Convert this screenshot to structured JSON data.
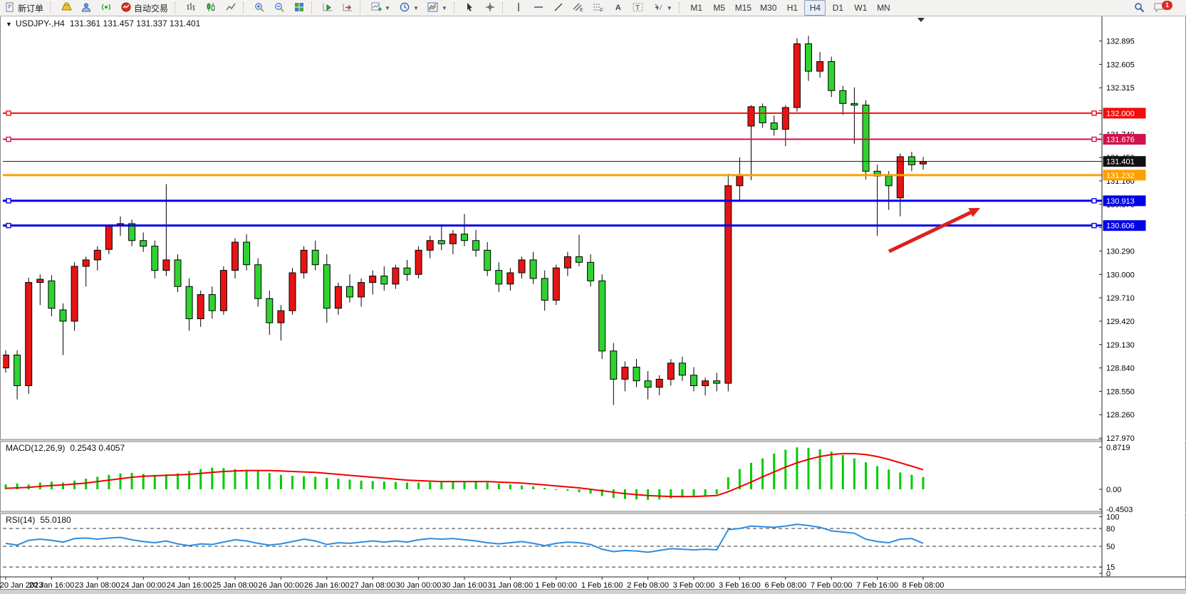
{
  "toolbar": {
    "new_order": "新订单",
    "autotrade": "自动交易",
    "timeframes": [
      "M1",
      "M5",
      "M15",
      "M30",
      "H1",
      "H4",
      "D1",
      "W1",
      "MN"
    ],
    "active_timeframe": "H4",
    "notification_count": "1",
    "drawing_tool_letters": {
      "channel": "E",
      "fibonacci": "F",
      "text": "A",
      "label": "T"
    },
    "icons": [
      "new-order-icon",
      "gold-icon",
      "profile-icon",
      "signal-icon",
      "autotrade-icon",
      "bars-chart-icon",
      "candles-chart-icon",
      "line-chart-icon",
      "zoom-in-icon",
      "zoom-out-icon",
      "tile-windows-icon",
      "auto-scroll-icon",
      "chart-shift-icon",
      "add-indicator-icon",
      "period-icon",
      "template-icon",
      "cursor-icon",
      "crosshair-icon",
      "vertical-line-icon",
      "horizontal-line-icon",
      "trendline-icon",
      "channel-icon",
      "fibonacci-icon",
      "text-icon",
      "text-label-icon",
      "arrows-icon",
      "search-icon",
      "chat-icon"
    ]
  },
  "chart_data": [
    {
      "type": "candlestick",
      "title": "USDJPY-,H4",
      "ohlc_text": "131.361 131.457 131.337 131.401",
      "open": "131.361",
      "high": "131.457",
      "low": "131.337",
      "close": "131.401",
      "x_start": "20 Jan 2023 00:00",
      "interval": "H4",
      "x_labels": [
        "20 Jan 2023",
        "20 Jan 16:00",
        "23 Jan 08:00",
        "24 Jan 00:00",
        "24 Jan 16:00",
        "25 Jan 08:00",
        "26 Jan 00:00",
        "26 Jan 16:00",
        "27 Jan 08:00",
        "30 Jan 00:00",
        "30 Jan 16:00",
        "31 Jan 08:00",
        "1 Feb 00:00",
        "1 Feb 16:00",
        "2 Feb 08:00",
        "3 Feb 00:00",
        "3 Feb 16:00",
        "6 Feb 08:00",
        "7 Feb 00:00",
        "7 Feb 16:00",
        "8 Feb 08:00"
      ],
      "y_ticks": [
        "132.895",
        "132.605",
        "132.315",
        "132.030",
        "131.740",
        "131.450",
        "131.160",
        "130.870",
        "130.580",
        "130.290",
        "130.000",
        "129.710",
        "129.420",
        "129.130",
        "128.840",
        "128.550",
        "128.260",
        "127.970"
      ],
      "up_color": "#e81414",
      "down_color": "#2fd330",
      "wick_color": "#000000",
      "horizontal_lines": [
        {
          "price": 132.0,
          "label": "132.000",
          "color": "#f20c0c",
          "width": 2,
          "handles": true
        },
        {
          "price": 131.676,
          "label": "131.676",
          "color": "#d2114c",
          "width": 2,
          "handles": true
        },
        {
          "price": 131.401,
          "label": "131.401",
          "color": "#111111",
          "width": 1,
          "handles": false
        },
        {
          "price": 131.232,
          "label": "131.232",
          "color": "#ffa000",
          "width": 3,
          "handles": false
        },
        {
          "price": 130.913,
          "label": "130.913",
          "color": "#0202e8",
          "width": 3,
          "handles": true
        },
        {
          "price": 130.606,
          "label": "130.606",
          "color": "#0202e8",
          "width": 3,
          "handles": true
        }
      ],
      "annotation_arrow": {
        "from": [
          1248,
          353
        ],
        "to": [
          1376,
          292
        ],
        "color": "#dd2020"
      },
      "bars": [
        [
          128.84,
          129.06,
          128.78,
          129.0
        ],
        [
          129.0,
          129.06,
          128.45,
          128.62
        ],
        [
          128.62,
          129.96,
          128.52,
          129.9
        ],
        [
          129.9,
          130.0,
          129.62,
          129.94
        ],
        [
          129.92,
          129.99,
          129.48,
          129.58
        ],
        [
          129.56,
          129.64,
          129.0,
          129.42
        ],
        [
          129.42,
          130.15,
          129.3,
          130.1
        ],
        [
          130.1,
          130.22,
          129.85,
          130.18
        ],
        [
          130.18,
          130.35,
          130.05,
          130.3
        ],
        [
          130.31,
          130.62,
          130.25,
          130.6
        ],
        [
          130.6,
          130.72,
          130.48,
          130.63
        ],
        [
          130.63,
          130.68,
          130.35,
          130.42
        ],
        [
          130.42,
          130.52,
          130.28,
          130.35
        ],
        [
          130.35,
          130.42,
          129.95,
          130.05
        ],
        [
          130.05,
          131.12,
          129.98,
          130.18
        ],
        [
          130.18,
          130.25,
          129.78,
          129.85
        ],
        [
          129.85,
          129.95,
          129.3,
          129.45
        ],
        [
          129.45,
          129.8,
          129.35,
          129.75
        ],
        [
          129.75,
          129.85,
          129.45,
          129.55
        ],
        [
          129.55,
          130.1,
          129.5,
          130.05
        ],
        [
          130.05,
          130.45,
          129.95,
          130.4
        ],
        [
          130.4,
          130.5,
          130.05,
          130.12
        ],
        [
          130.12,
          130.2,
          129.6,
          129.7
        ],
        [
          129.7,
          129.8,
          129.25,
          129.4
        ],
        [
          129.4,
          129.62,
          129.18,
          129.55
        ],
        [
          129.55,
          130.08,
          129.5,
          130.02
        ],
        [
          130.02,
          130.35,
          129.95,
          130.3
        ],
        [
          130.3,
          130.42,
          130.05,
          130.12
        ],
        [
          130.12,
          130.25,
          129.4,
          129.58
        ],
        [
          129.58,
          129.9,
          129.5,
          129.85
        ],
        [
          129.85,
          130.0,
          129.65,
          129.72
        ],
        [
          129.72,
          129.95,
          129.6,
          129.9
        ],
        [
          129.9,
          130.05,
          129.75,
          129.98
        ],
        [
          129.98,
          130.1,
          129.8,
          129.88
        ],
        [
          129.88,
          130.12,
          129.82,
          130.08
        ],
        [
          130.08,
          130.18,
          129.92,
          130.0
        ],
        [
          130.0,
          130.35,
          129.95,
          130.3
        ],
        [
          130.3,
          130.48,
          130.2,
          130.42
        ],
        [
          130.42,
          130.62,
          130.3,
          130.38
        ],
        [
          130.38,
          130.55,
          130.25,
          130.5
        ],
        [
          130.5,
          130.75,
          130.35,
          130.42
        ],
        [
          130.42,
          130.55,
          130.22,
          130.3
        ],
        [
          130.3,
          130.4,
          129.98,
          130.05
        ],
        [
          130.05,
          130.15,
          129.78,
          129.88
        ],
        [
          129.88,
          130.08,
          129.8,
          130.02
        ],
        [
          130.02,
          130.22,
          129.95,
          130.18
        ],
        [
          130.18,
          130.28,
          129.88,
          129.95
        ],
        [
          129.95,
          130.05,
          129.55,
          129.68
        ],
        [
          129.68,
          130.12,
          129.62,
          130.08
        ],
        [
          130.08,
          130.28,
          129.98,
          130.22
        ],
        [
          130.22,
          130.49,
          130.1,
          130.15
        ],
        [
          130.15,
          130.25,
          129.85,
          129.92
        ],
        [
          129.92,
          130.0,
          128.95,
          129.05
        ],
        [
          129.05,
          129.15,
          128.38,
          128.7
        ],
        [
          128.7,
          128.92,
          128.55,
          128.85
        ],
        [
          128.85,
          128.95,
          128.6,
          128.68
        ],
        [
          128.68,
          128.8,
          128.45,
          128.6
        ],
        [
          128.6,
          128.75,
          128.5,
          128.7
        ],
        [
          128.7,
          128.95,
          128.62,
          128.9
        ],
        [
          128.9,
          128.98,
          128.68,
          128.75
        ],
        [
          128.75,
          128.85,
          128.55,
          128.62
        ],
        [
          128.62,
          128.72,
          128.5,
          128.68
        ],
        [
          128.68,
          128.78,
          128.55,
          128.65
        ],
        [
          128.65,
          131.25,
          128.55,
          131.1
        ],
        [
          131.1,
          131.45,
          130.9,
          131.22
        ],
        [
          131.84,
          132.1,
          131.17,
          132.08
        ],
        [
          132.08,
          132.12,
          131.82,
          131.88
        ],
        [
          131.88,
          131.97,
          131.72,
          131.8
        ],
        [
          131.8,
          132.1,
          131.59,
          132.07
        ],
        [
          132.07,
          132.93,
          132.02,
          132.86
        ],
        [
          132.86,
          132.96,
          132.4,
          132.52
        ],
        [
          132.52,
          132.76,
          132.44,
          132.64
        ],
        [
          132.64,
          132.7,
          132.2,
          132.28
        ],
        [
          132.28,
          132.34,
          131.98,
          132.12
        ],
        [
          132.12,
          132.32,
          131.62,
          132.1
        ],
        [
          132.1,
          132.16,
          131.18,
          131.28
        ],
        [
          131.28,
          131.36,
          130.48,
          131.22
        ],
        [
          131.22,
          131.28,
          130.8,
          131.1
        ],
        [
          130.95,
          131.5,
          130.72,
          131.46
        ],
        [
          131.46,
          131.52,
          131.28,
          131.36
        ],
        [
          131.37,
          131.457,
          131.3,
          131.401
        ]
      ]
    },
    {
      "type": "bar",
      "name": "MACD(12,26,9)",
      "values_text": "0.2543 0.4057",
      "main_value": "0.2543",
      "signal_value": "0.4057",
      "y_ticks": [
        "0.8719",
        "0.00",
        "-0.4503"
      ],
      "hist_color": "#00cc00",
      "signal_color": "#f00000",
      "values": [
        0.1,
        0.12,
        0.1,
        0.14,
        0.16,
        0.14,
        0.18,
        0.22,
        0.26,
        0.3,
        0.33,
        0.34,
        0.32,
        0.3,
        0.31,
        0.33,
        0.38,
        0.42,
        0.45,
        0.44,
        0.42,
        0.4,
        0.38,
        0.34,
        0.3,
        0.28,
        0.27,
        0.26,
        0.24,
        0.22,
        0.2,
        0.18,
        0.17,
        0.16,
        0.15,
        0.14,
        0.14,
        0.15,
        0.16,
        0.17,
        0.17,
        0.16,
        0.14,
        0.12,
        0.1,
        0.08,
        0.06,
        0.03,
        0.0,
        -0.03,
        -0.06,
        -0.09,
        -0.14,
        -0.18,
        -0.2,
        -0.21,
        -0.22,
        -0.21,
        -0.19,
        -0.17,
        -0.15,
        -0.13,
        -0.1,
        0.25,
        0.42,
        0.55,
        0.64,
        0.74,
        0.82,
        0.87,
        0.86,
        0.83,
        0.78,
        0.71,
        0.64,
        0.56,
        0.48,
        0.41,
        0.35,
        0.3,
        0.2543
      ],
      "signal": [
        0.02,
        0.03,
        0.04,
        0.06,
        0.08,
        0.09,
        0.11,
        0.13,
        0.16,
        0.19,
        0.22,
        0.25,
        0.27,
        0.28,
        0.29,
        0.3,
        0.31,
        0.33,
        0.35,
        0.37,
        0.38,
        0.39,
        0.39,
        0.39,
        0.38,
        0.37,
        0.36,
        0.35,
        0.33,
        0.31,
        0.29,
        0.27,
        0.25,
        0.23,
        0.21,
        0.19,
        0.18,
        0.17,
        0.16,
        0.16,
        0.16,
        0.16,
        0.16,
        0.15,
        0.14,
        0.13,
        0.11,
        0.09,
        0.07,
        0.05,
        0.03,
        0.0,
        -0.03,
        -0.06,
        -0.09,
        -0.11,
        -0.13,
        -0.14,
        -0.15,
        -0.15,
        -0.15,
        -0.14,
        -0.13,
        -0.05,
        0.05,
        0.15,
        0.26,
        0.36,
        0.46,
        0.55,
        0.62,
        0.68,
        0.72,
        0.74,
        0.74,
        0.72,
        0.68,
        0.62,
        0.55,
        0.48,
        0.4057
      ]
    },
    {
      "type": "line",
      "name": "RSI(14)",
      "value_text": "55.0180",
      "y_ticks": [
        "100",
        "80",
        "50",
        "15",
        "0"
      ],
      "levels": [
        80,
        50,
        15
      ],
      "line_color": "#2e8ce0",
      "values": [
        55,
        52,
        60,
        62,
        60,
        57,
        63,
        64,
        62,
        64,
        65,
        61,
        58,
        56,
        59,
        54,
        51,
        54,
        53,
        57,
        61,
        59,
        55,
        52,
        54,
        58,
        62,
        59,
        53,
        56,
        55,
        57,
        59,
        57,
        59,
        57,
        61,
        63,
        62,
        63,
        61,
        59,
        56,
        54,
        56,
        58,
        55,
        51,
        55,
        57,
        56,
        53,
        45,
        41,
        43,
        42,
        40,
        43,
        46,
        45,
        44,
        45,
        44,
        78,
        80,
        84,
        83,
        82,
        84,
        87,
        85,
        82,
        76,
        74,
        72,
        62,
        58,
        56,
        62,
        63,
        55
      ]
    }
  ]
}
